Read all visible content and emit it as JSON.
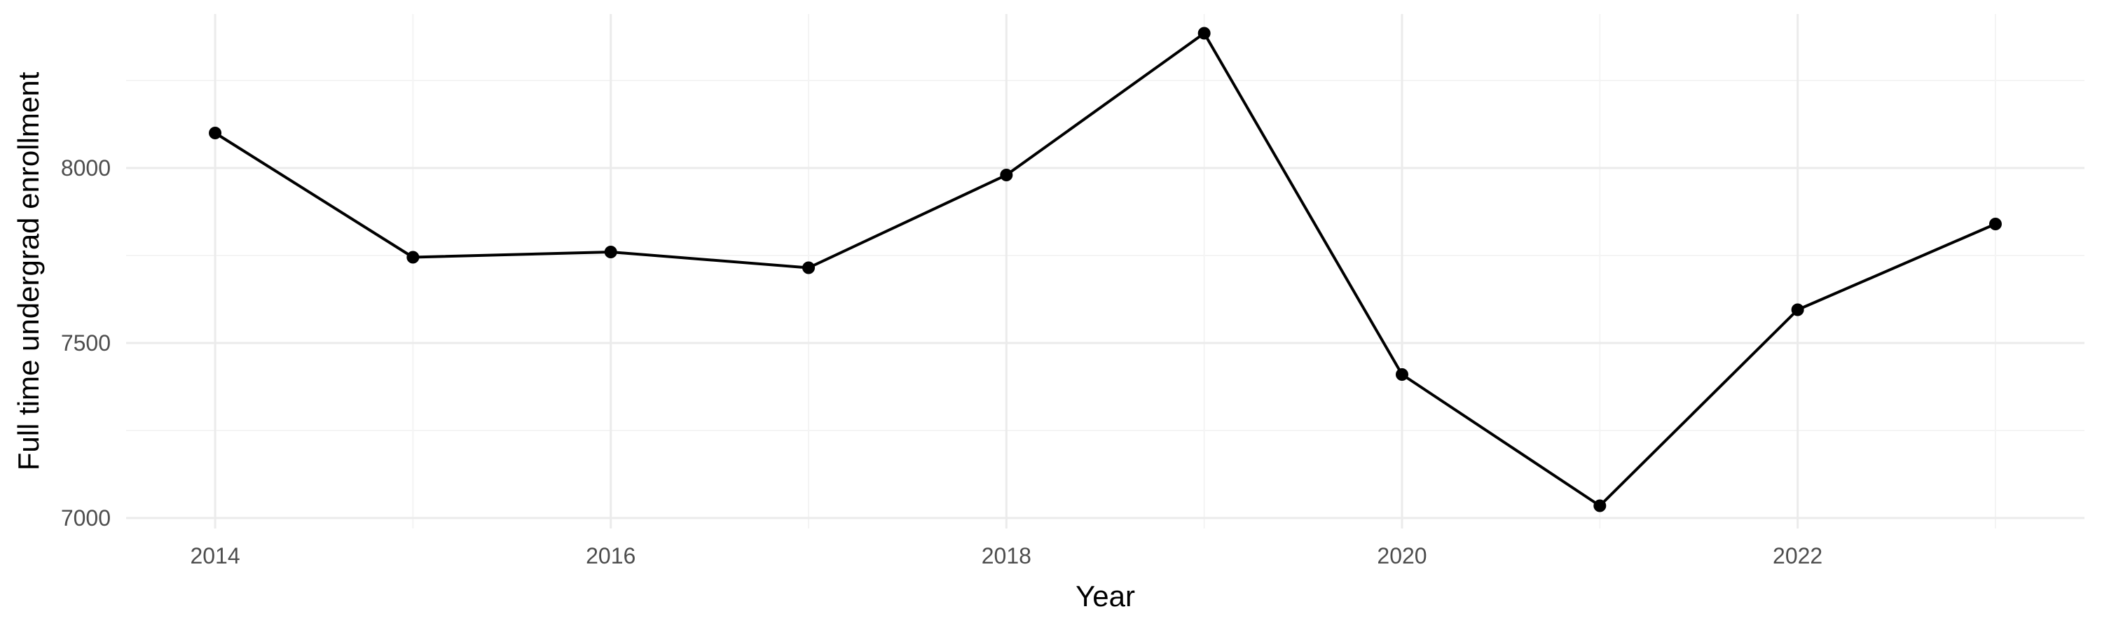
{
  "chart_data": {
    "type": "line",
    "title": "",
    "xlabel": "Year",
    "ylabel": "Full time undergrad enrollment",
    "x": [
      2014,
      2015,
      2016,
      2017,
      2018,
      2019,
      2020,
      2021,
      2022,
      2023
    ],
    "series": [
      {
        "values": [
          8100,
          7745,
          7760,
          7715,
          7980,
          8385,
          7410,
          7035,
          7595,
          7840
        ]
      }
    ],
    "xlim": [
      2013.55,
      2023.45
    ],
    "ylim": [
      6970,
      8440
    ],
    "x_ticks": [
      2014,
      2016,
      2018,
      2020,
      2022
    ],
    "x_tick_labels": [
      "2014",
      "2016",
      "2018",
      "2020",
      "2022"
    ],
    "y_ticks": [
      7000,
      7500,
      8000
    ],
    "y_tick_labels": [
      "7000",
      "7500",
      "8000"
    ],
    "x_minor_ticks": [
      2015,
      2017,
      2019,
      2021,
      2023
    ],
    "y_minor_ticks": [
      7250,
      7750,
      8250
    ],
    "grid": true,
    "legend": "none",
    "colors": {
      "line": "#000000",
      "point": "#000000",
      "grid": "#ebebeb",
      "background": "#ffffff"
    }
  }
}
